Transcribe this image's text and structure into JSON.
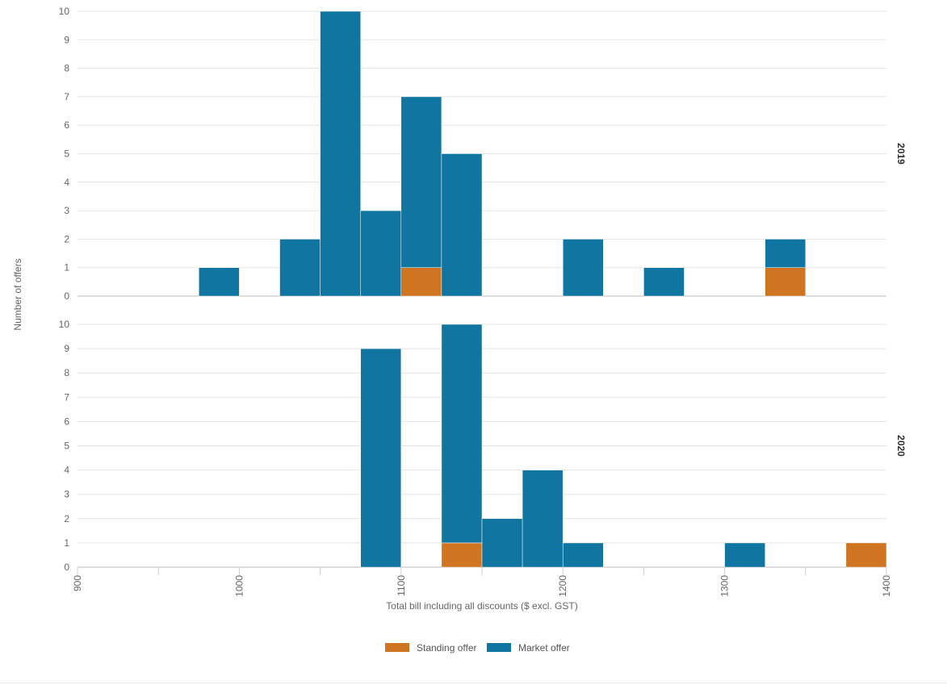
{
  "chart_data": {
    "type": "bar",
    "subtype": "stacked-histogram-faceted",
    "xlabel": "Total bill including all discounts ($ excl. GST)",
    "ylabel": "Number of offers",
    "xlim": [
      900,
      1400
    ],
    "x_ticks": [
      900,
      1000,
      1100,
      1200,
      1300,
      1400
    ],
    "bin_width": 25,
    "ylim": [
      0,
      10
    ],
    "y_ticks": [
      0,
      1,
      2,
      3,
      4,
      5,
      6,
      7,
      8,
      9,
      10
    ],
    "grid": true,
    "legend_position": "bottom",
    "series": [
      {
        "name": "Standing offer",
        "color": "#cf7420"
      },
      {
        "name": "Market offer",
        "color": "#1175a1"
      }
    ],
    "panels": [
      {
        "label": "2019",
        "bins": [
          {
            "x0": 975,
            "x1": 1000,
            "standing": 0,
            "market": 1
          },
          {
            "x0": 1025,
            "x1": 1050,
            "standing": 0,
            "market": 2
          },
          {
            "x0": 1050,
            "x1": 1075,
            "standing": 0,
            "market": 10
          },
          {
            "x0": 1075,
            "x1": 1100,
            "standing": 0,
            "market": 3
          },
          {
            "x0": 1100,
            "x1": 1125,
            "standing": 1,
            "market": 6
          },
          {
            "x0": 1125,
            "x1": 1150,
            "standing": 0,
            "market": 5
          },
          {
            "x0": 1200,
            "x1": 1225,
            "standing": 0,
            "market": 2
          },
          {
            "x0": 1250,
            "x1": 1275,
            "standing": 0,
            "market": 1
          },
          {
            "x0": 1325,
            "x1": 1350,
            "standing": 1,
            "market": 1
          }
        ]
      },
      {
        "label": "2020",
        "bins": [
          {
            "x0": 1075,
            "x1": 1100,
            "standing": 0,
            "market": 9
          },
          {
            "x0": 1125,
            "x1": 1150,
            "standing": 1,
            "market": 9
          },
          {
            "x0": 1150,
            "x1": 1175,
            "standing": 0,
            "market": 2
          },
          {
            "x0": 1175,
            "x1": 1200,
            "standing": 0,
            "market": 4
          },
          {
            "x0": 1200,
            "x1": 1225,
            "standing": 0,
            "market": 1
          },
          {
            "x0": 1300,
            "x1": 1325,
            "standing": 0,
            "market": 1
          },
          {
            "x0": 1375,
            "x1": 1400,
            "standing": 1,
            "market": 0
          }
        ]
      }
    ]
  }
}
